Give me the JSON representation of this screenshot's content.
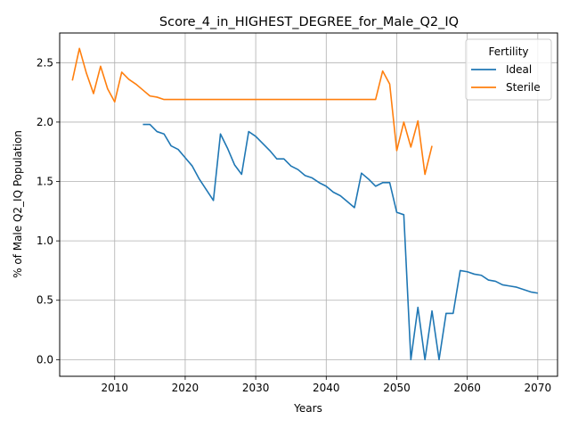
{
  "chart_data": {
    "type": "line",
    "title": "Score_4_in_HIGHEST_DEGREE_for_Male_Q2_IQ",
    "xlabel": "Years",
    "ylabel": "% of Male Q2_IQ Population",
    "xlim": [
      2002.2,
      2072.8
    ],
    "ylim": [
      -0.14,
      2.75
    ],
    "xticks": [
      2010,
      2020,
      2030,
      2040,
      2050,
      2060,
      2070
    ],
    "xtick_labels": [
      "2010",
      "2020",
      "2030",
      "2040",
      "2050",
      "2060",
      "2070"
    ],
    "yticks": [
      0.0,
      0.5,
      1.0,
      1.5,
      2.0,
      2.5
    ],
    "ytick_labels": [
      "0.0",
      "0.5",
      "1.0",
      "1.5",
      "2.0",
      "2.5"
    ],
    "grid": true,
    "legend": {
      "title": "Fertility",
      "position": "top-right"
    },
    "series": [
      {
        "name": "Ideal",
        "color": "#1f77b4",
        "x": [
          2014,
          2015,
          2016,
          2017,
          2018,
          2019,
          2020,
          2021,
          2022,
          2023,
          2024,
          2025,
          2026,
          2027,
          2028,
          2029,
          2030,
          2031,
          2032,
          2033,
          2034,
          2035,
          2036,
          2037,
          2038,
          2039,
          2040,
          2041,
          2042,
          2043,
          2044,
          2045,
          2046,
          2047,
          2048,
          2049,
          2050,
          2051,
          2052,
          2053,
          2054,
          2055,
          2056,
          2057,
          2058,
          2059,
          2060,
          2061,
          2062,
          2063,
          2064,
          2065,
          2066,
          2067,
          2068,
          2069,
          2070
        ],
        "y": [
          1.98,
          1.98,
          1.92,
          1.9,
          1.8,
          1.77,
          1.7,
          1.63,
          1.52,
          1.43,
          1.34,
          1.9,
          1.78,
          1.64,
          1.56,
          1.92,
          1.88,
          1.82,
          1.76,
          1.69,
          1.69,
          1.63,
          1.6,
          1.55,
          1.53,
          1.49,
          1.46,
          1.41,
          1.38,
          1.33,
          1.28,
          1.57,
          1.52,
          1.46,
          1.49,
          1.49,
          1.24,
          1.22,
          0.0,
          0.44,
          0.0,
          0.41,
          0.0,
          0.39,
          0.39,
          0.75,
          0.74,
          0.72,
          0.71,
          0.67,
          0.66,
          0.63,
          0.62,
          0.61,
          0.59,
          0.57,
          0.56
        ]
      },
      {
        "name": "Sterile",
        "color": "#ff7f0e",
        "x": [
          2004,
          2005,
          2006,
          2007,
          2008,
          2009,
          2010,
          2011,
          2012,
          2013,
          2014,
          2015,
          2016,
          2017,
          2018,
          2019,
          2020,
          2021,
          2022,
          2023,
          2024,
          2025,
          2026,
          2027,
          2028,
          2029,
          2030,
          2031,
          2032,
          2033,
          2034,
          2035,
          2036,
          2037,
          2038,
          2039,
          2040,
          2041,
          2042,
          2043,
          2044,
          2045,
          2046,
          2047,
          2048,
          2049,
          2050,
          2051,
          2052,
          2053,
          2054,
          2055
        ],
        "y": [
          2.35,
          2.62,
          2.41,
          2.24,
          2.47,
          2.28,
          2.17,
          2.42,
          2.36,
          2.32,
          2.27,
          2.22,
          2.21,
          2.19,
          2.19,
          2.19,
          2.19,
          2.19,
          2.19,
          2.19,
          2.19,
          2.19,
          2.19,
          2.19,
          2.19,
          2.19,
          2.19,
          2.19,
          2.19,
          2.19,
          2.19,
          2.19,
          2.19,
          2.19,
          2.19,
          2.19,
          2.19,
          2.19,
          2.19,
          2.19,
          2.19,
          2.19,
          2.19,
          2.19,
          2.43,
          2.32,
          1.76,
          2.0,
          1.79,
          2.01,
          1.56,
          1.8
        ]
      }
    ]
  }
}
